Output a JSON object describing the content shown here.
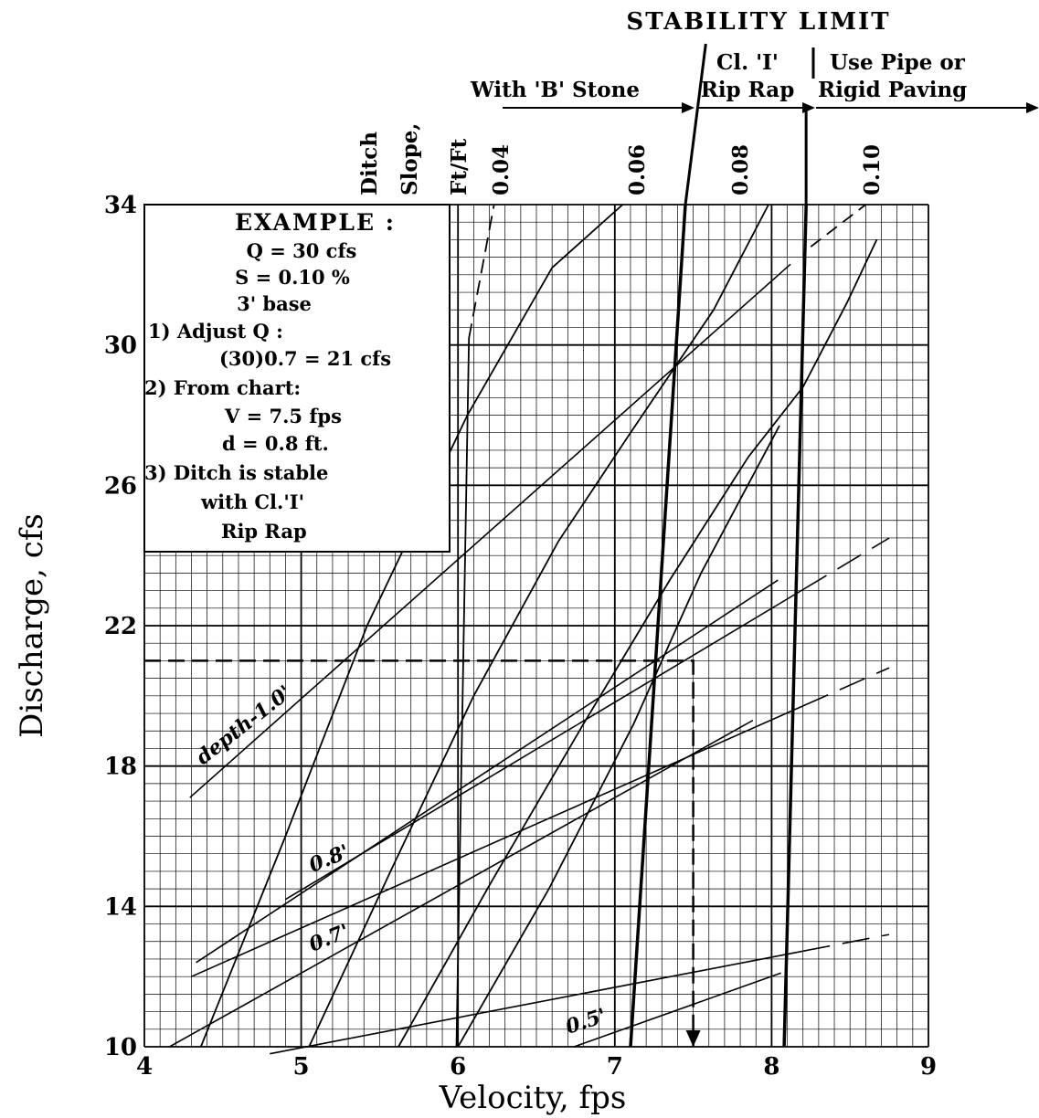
{
  "chart_data": {
    "type": "line",
    "title": "STABILITY LIMIT",
    "xlabel": "Velocity, fps",
    "ylabel": "Discharge, cfs",
    "xlim": [
      4,
      9
    ],
    "ylim": [
      10,
      34
    ],
    "x_ticks": [
      "4",
      "5",
      "6",
      "7",
      "8",
      "9"
    ],
    "y_ticks": [
      "10",
      "14",
      "18",
      "22",
      "26",
      "30",
      "34"
    ],
    "grid": true,
    "stability_zones": [
      {
        "label": "With 'B' Stone",
        "arrow": "right"
      },
      {
        "label": "Cl. 'I'",
        "label2": "Rip Rap"
      },
      {
        "label": "Use Pipe or",
        "label2": "Rigid Paving",
        "arrow": "right"
      }
    ],
    "stability_limits": [
      {
        "name": "B Stone limit",
        "points": [
          [
            7.1,
            10
          ],
          [
            7.45,
            34
          ]
        ]
      },
      {
        "name": "Cl. I limit",
        "points": [
          [
            8.08,
            10
          ],
          [
            8.22,
            34
          ]
        ]
      }
    ],
    "slope_header": [
      "Ditch",
      "Slope,",
      "Ft/Ft"
    ],
    "slope_series": [
      {
        "name": "0.04",
        "points": [
          [
            5.99,
            10
          ],
          [
            6.07,
            30.2
          ],
          [
            6.23,
            34
          ]
        ],
        "extension": [
          [
            6.07,
            30.2
          ],
          [
            6.23,
            34
          ]
        ]
      },
      {
        "name": "0.06",
        "points": [
          [
            4.36,
            10
          ],
          [
            4.9,
            16
          ],
          [
            5.42,
            22
          ],
          [
            6.06,
            28
          ],
          [
            6.6,
            32.2
          ],
          [
            7.05,
            34
          ]
        ]
      },
      {
        "name": "0.08",
        "points": [
          [
            5.05,
            10
          ],
          [
            5.57,
            15
          ],
          [
            6.1,
            20
          ],
          [
            6.64,
            24.4
          ],
          [
            7.1,
            27.5
          ],
          [
            7.63,
            31
          ],
          [
            7.98,
            34
          ]
        ]
      },
      {
        "name": "0.10",
        "points": [
          [
            5.62,
            10
          ],
          [
            6.2,
            14.6
          ],
          [
            6.8,
            19.2
          ],
          [
            7.35,
            23.3
          ],
          [
            7.85,
            26.8
          ],
          [
            8.2,
            28.8
          ],
          [
            8.48,
            31.2
          ],
          [
            8.67,
            33
          ]
        ]
      }
    ],
    "slope_series_unlabeled": [
      {
        "points": [
          [
            6.0,
            10
          ],
          [
            6.58,
            14.5
          ],
          [
            7.12,
            19.2
          ],
          [
            7.55,
            23.5
          ],
          [
            8.05,
            27.7
          ]
        ]
      }
    ],
    "depth_series": [
      {
        "name": "depth-1.0'",
        "points": [
          [
            4.29,
            17.1
          ],
          [
            8.12,
            32.3
          ]
        ]
      },
      {
        "name": "0.8'",
        "points": [
          [
            4.33,
            12.4
          ],
          [
            8.04,
            23.3
          ]
        ]
      },
      {
        "name": "0.7'",
        "points": [
          [
            4.16,
            10
          ],
          [
            7.88,
            19.3
          ]
        ]
      },
      {
        "name": "0.5'",
        "points": [
          [
            6.74,
            10
          ],
          [
            8.06,
            12.1
          ]
        ]
      }
    ],
    "depth_series_unlabeled": [
      {
        "points": [
          [
            4.9,
            14.2
          ],
          [
            8.75,
            24.5
          ]
        ],
        "dashed_from": 8.2
      },
      {
        "points": [
          [
            4.3,
            12.0
          ],
          [
            8.75,
            20.8
          ]
        ],
        "dashed_from": 8.2
      },
      {
        "points": [
          [
            4.8,
            9.8
          ],
          [
            8.75,
            13.2
          ]
        ],
        "dashed_from": 8.2
      }
    ],
    "example_path": {
      "y_value": 21,
      "x_value": 7.5,
      "path": [
        [
          4.0,
          21
        ],
        [
          7.5,
          21
        ],
        [
          7.5,
          10
        ]
      ]
    },
    "example_box": {
      "title": "EXAMPLE :",
      "lines": [
        "Q  =  30  cfs",
        "S = 0.10  %",
        "3'  base",
        "1) Adjust  Q   :",
        "(30)0.7 = 21  cfs",
        "2) From  chart:",
        "V  =  7.5  fps",
        "d = 0.8  ft.",
        "3) Ditch  is stable",
        "with  Cl.'I'",
        "Rip  Rap"
      ]
    }
  }
}
